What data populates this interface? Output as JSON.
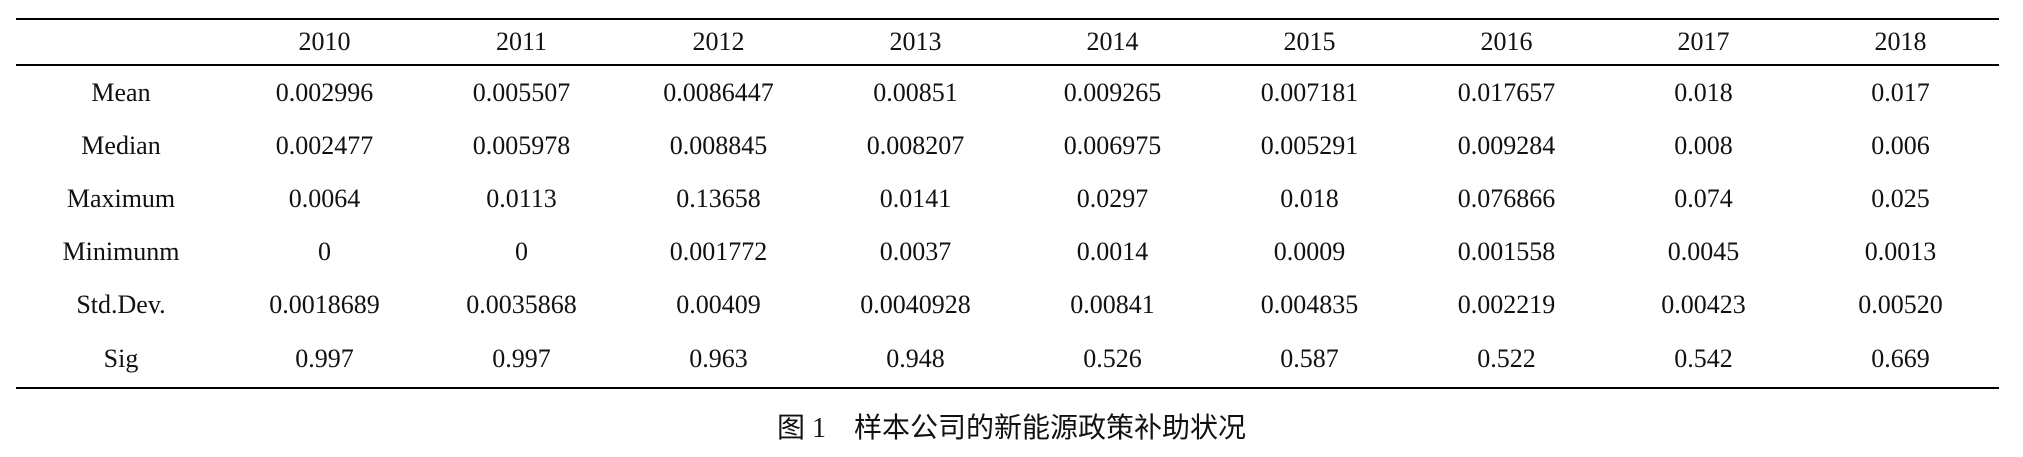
{
  "table": {
    "columns": [
      "2010",
      "2011",
      "2012",
      "2013",
      "2014",
      "2015",
      "2016",
      "2017",
      "2018"
    ],
    "rows": [
      {
        "label": "Mean",
        "cells": [
          "0.002996",
          "0.005507",
          "0.0086447",
          "0.00851",
          "0.009265",
          "0.007181",
          "0.017657",
          "0.018",
          "0.017"
        ]
      },
      {
        "label": "Median",
        "cells": [
          "0.002477",
          "0.005978",
          "0.008845",
          "0.008207",
          "0.006975",
          "0.005291",
          "0.009284",
          "0.008",
          "0.006"
        ]
      },
      {
        "label": "Maximum",
        "cells": [
          "0.0064",
          "0.0113",
          "0.13658",
          "0.0141",
          "0.0297",
          "0.018",
          "0.076866",
          "0.074",
          "0.025"
        ]
      },
      {
        "label": "Minimunm",
        "cells": [
          "0",
          "0",
          "0.001772",
          "0.0037",
          "0.0014",
          "0.0009",
          "0.001558",
          "0.0045",
          "0.0013"
        ]
      },
      {
        "label": "Std.Dev.",
        "cells": [
          "0.0018689",
          "0.0035868",
          "0.00409",
          "0.0040928",
          "0.00841",
          "0.004835",
          "0.002219",
          "0.00423",
          "0.00520"
        ]
      },
      {
        "label": "Sig",
        "cells": [
          "0.997",
          "0.997",
          "0.963",
          "0.948",
          "0.526",
          "0.587",
          "0.522",
          "0.542",
          "0.669"
        ]
      }
    ]
  },
  "caption": "图 1　样本公司的新能源政策补助状况"
}
